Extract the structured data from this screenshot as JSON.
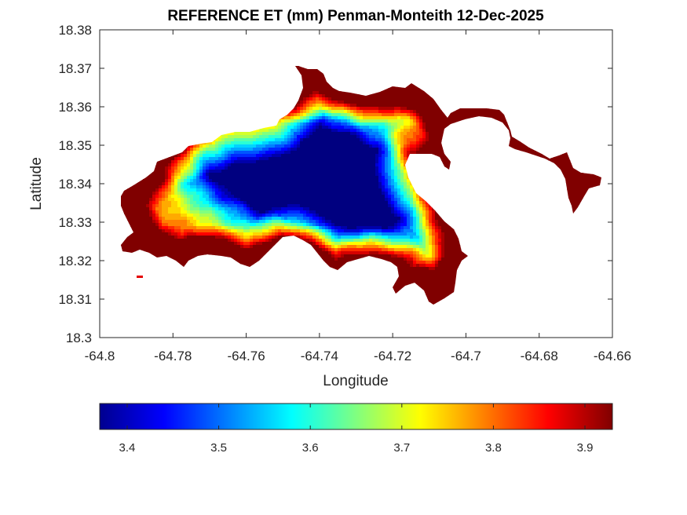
{
  "chart_data": {
    "type": "heatmap",
    "title": "REFERENCE ET (mm) Penman-Monteith 12-Dec-2025",
    "xlabel": "Longitude",
    "ylabel": "Latitude",
    "xlim": [
      -64.8,
      -64.66
    ],
    "ylim": [
      18.3,
      18.38
    ],
    "x_ticks": [
      -64.8,
      -64.78,
      -64.76,
      -64.74,
      -64.72,
      -64.7,
      -64.68,
      -64.66
    ],
    "x_tick_labels": [
      "-64.8",
      "-64.78",
      "-64.76",
      "-64.74",
      "-64.72",
      "-64.7",
      "-64.68",
      "-64.66"
    ],
    "y_ticks": [
      18.3,
      18.31,
      18.32,
      18.33,
      18.34,
      18.35,
      18.36,
      18.37,
      18.38
    ],
    "y_tick_labels": [
      "18.3",
      "18.31",
      "18.32",
      "18.33",
      "18.34",
      "18.35",
      "18.36",
      "18.37",
      "18.38"
    ],
    "grid": false,
    "colormap": "jet",
    "colorbar": {
      "location": "bottom",
      "clim": [
        3.37,
        3.93
      ],
      "ticks": [
        3.4,
        3.5,
        3.6,
        3.7,
        3.8,
        3.9
      ],
      "tick_labels": [
        "3.4",
        "3.5",
        "3.6",
        "3.7",
        "3.8",
        "3.9"
      ]
    },
    "field_description": "Filled contour of reference evapotranspiration over the island; lowest values (about 3.38-3.45) in the central interior, rising to about 3.9 along the coasts.",
    "low_centers": [
      {
        "lon": -64.749,
        "lat": 18.3425,
        "value": 3.38
      },
      {
        "lon": -64.7205,
        "lat": 18.336,
        "value": 3.39
      },
      {
        "lon": -64.767,
        "lat": 18.348,
        "value": 3.44
      },
      {
        "lon": -64.737,
        "lat": 18.343,
        "value": 3.44
      }
    ],
    "high_spots": [
      {
        "lon": -64.7075,
        "lat": 18.311,
        "value": 3.93
      },
      {
        "lon": -64.7005,
        "lat": 18.358,
        "value": 3.92
      },
      {
        "lon": -64.713,
        "lat": 18.362,
        "value": 3.88
      },
      {
        "lon": -64.7835,
        "lat": 18.321,
        "value": 3.86
      },
      {
        "lon": -64.7395,
        "lat": 18.367,
        "value": 3.86
      },
      {
        "lon": -64.6715,
        "lat": 18.342,
        "value": 3.86
      },
      {
        "lon": -64.669,
        "lat": 18.336,
        "value": 3.8
      }
    ]
  }
}
